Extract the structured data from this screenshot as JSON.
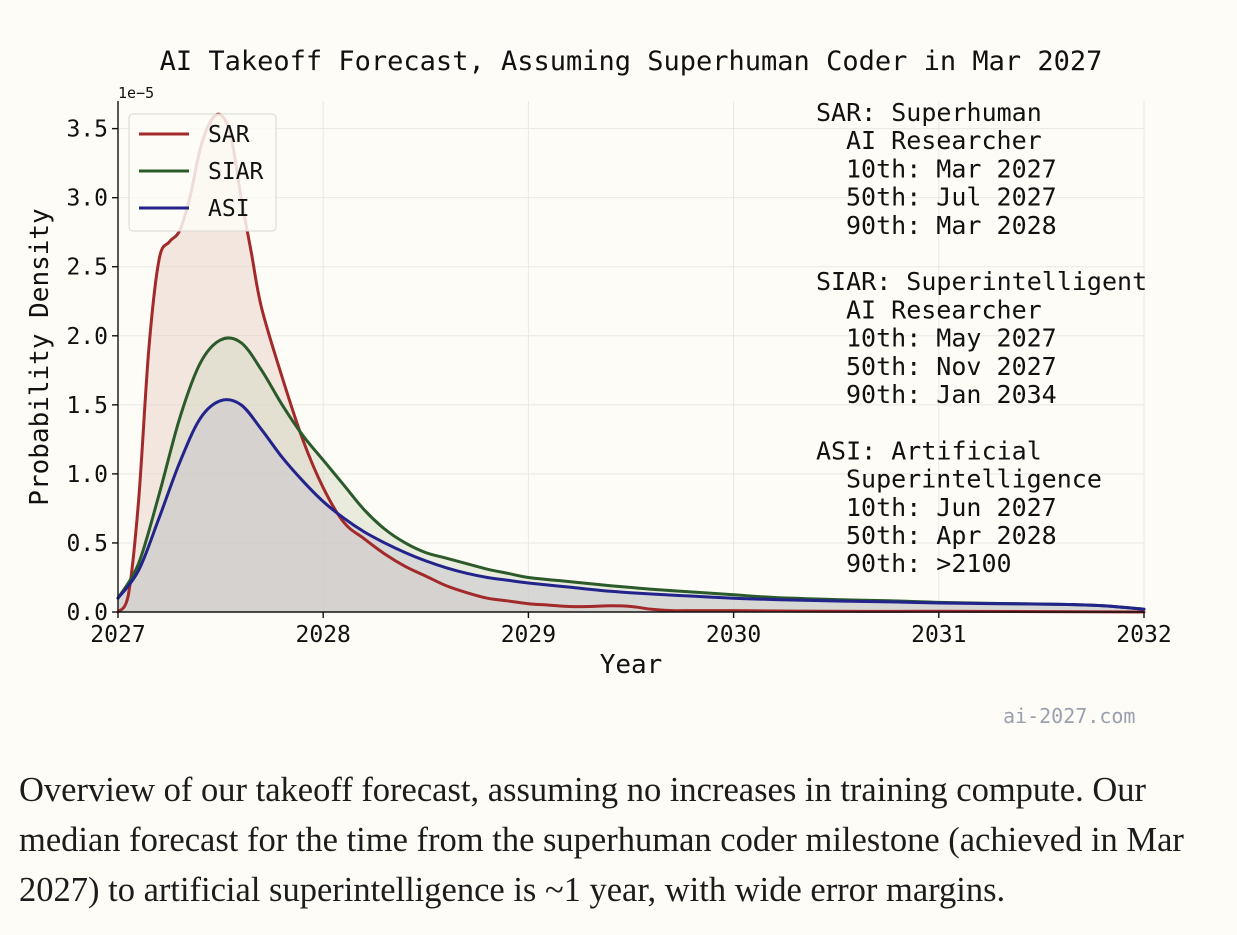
{
  "chart_data": {
    "type": "area",
    "title": "AI Takeoff Forecast, Assuming Superhuman Coder in Mar 2027",
    "xlabel": "Year",
    "ylabel": "Probability Density",
    "y_exponent_label": "1e−5",
    "xlim": [
      2027,
      2032
    ],
    "ylim": [
      0,
      3.7
    ],
    "y_scale_note": "values shown in units of 1e-5",
    "x_ticks": [
      "2027",
      "2028",
      "2029",
      "2030",
      "2031",
      "2032"
    ],
    "x_tick_values": [
      2027,
      2028,
      2029,
      2030,
      2031,
      2032
    ],
    "y_ticks": [
      "0.0",
      "0.5",
      "1.0",
      "1.5",
      "2.0",
      "2.5",
      "3.0",
      "3.5"
    ],
    "y_tick_values": [
      0,
      0.5,
      1.0,
      1.5,
      2.0,
      2.5,
      3.0,
      3.5
    ],
    "grid": true,
    "legend_position": "top-left",
    "series": [
      {
        "name": "SAR",
        "color": "#a32a2a",
        "fill": "#e9cfc6",
        "x": [
          2027.0,
          2027.05,
          2027.1,
          2027.15,
          2027.2,
          2027.25,
          2027.3,
          2027.35,
          2027.4,
          2027.45,
          2027.5,
          2027.55,
          2027.6,
          2027.65,
          2027.7,
          2027.8,
          2027.9,
          2028.0,
          2028.1,
          2028.2,
          2028.3,
          2028.4,
          2028.5,
          2028.6,
          2028.7,
          2028.8,
          2028.9,
          2029.0,
          2029.1,
          2029.2,
          2029.3,
          2029.4,
          2029.5,
          2029.6,
          2029.7,
          2029.8,
          2030.0,
          2030.5,
          2031.0,
          2031.5,
          2032.0
        ],
        "values": [
          0.0,
          0.12,
          0.8,
          1.9,
          2.55,
          2.68,
          2.76,
          3.0,
          3.35,
          3.55,
          3.6,
          3.45,
          3.0,
          2.6,
          2.2,
          1.7,
          1.25,
          0.9,
          0.65,
          0.53,
          0.42,
          0.33,
          0.26,
          0.19,
          0.14,
          0.1,
          0.08,
          0.06,
          0.05,
          0.04,
          0.04,
          0.045,
          0.04,
          0.02,
          0.01,
          0.01,
          0.01,
          0.005,
          0.005,
          0.003,
          0.0
        ]
      },
      {
        "name": "SIAR",
        "color": "#2b5a2b",
        "fill": "#d6d9c4",
        "x": [
          2027.0,
          2027.1,
          2027.2,
          2027.3,
          2027.4,
          2027.5,
          2027.6,
          2027.7,
          2027.8,
          2027.9,
          2028.0,
          2028.1,
          2028.2,
          2028.3,
          2028.4,
          2028.5,
          2028.6,
          2028.7,
          2028.8,
          2028.9,
          2029.0,
          2029.2,
          2029.4,
          2029.6,
          2029.8,
          2030.0,
          2030.2,
          2030.5,
          2030.8,
          2031.0,
          2031.3,
          2031.6,
          2031.8,
          2032.0
        ],
        "values": [
          0.1,
          0.35,
          0.85,
          1.4,
          1.8,
          1.97,
          1.95,
          1.75,
          1.5,
          1.28,
          1.1,
          0.92,
          0.74,
          0.6,
          0.5,
          0.43,
          0.39,
          0.35,
          0.31,
          0.28,
          0.25,
          0.22,
          0.19,
          0.165,
          0.145,
          0.125,
          0.105,
          0.09,
          0.08,
          0.07,
          0.062,
          0.055,
          0.045,
          0.02
        ]
      },
      {
        "name": "ASI",
        "color": "#23238c",
        "fill": "#c5c3ce",
        "x": [
          2027.0,
          2027.1,
          2027.2,
          2027.3,
          2027.4,
          2027.5,
          2027.6,
          2027.7,
          2027.8,
          2027.9,
          2028.0,
          2028.1,
          2028.2,
          2028.3,
          2028.4,
          2028.5,
          2028.6,
          2028.7,
          2028.8,
          2028.9,
          2029.0,
          2029.2,
          2029.4,
          2029.6,
          2029.8,
          2030.0,
          2030.2,
          2030.5,
          2030.8,
          2031.0,
          2031.3,
          2031.6,
          2031.8,
          2032.0
        ],
        "values": [
          0.1,
          0.3,
          0.68,
          1.08,
          1.4,
          1.53,
          1.5,
          1.32,
          1.12,
          0.95,
          0.8,
          0.68,
          0.58,
          0.5,
          0.43,
          0.37,
          0.32,
          0.28,
          0.25,
          0.23,
          0.21,
          0.18,
          0.15,
          0.13,
          0.115,
          0.1,
          0.09,
          0.08,
          0.072,
          0.065,
          0.06,
          0.055,
          0.045,
          0.02
        ]
      }
    ],
    "annotations": [
      {
        "line": "SAR: Superhuman",
        "indent": false
      },
      {
        "line": "AI Researcher",
        "indent": true
      },
      {
        "line": "10th: Mar 2027",
        "indent": true
      },
      {
        "line": "50th: Jul 2027",
        "indent": true
      },
      {
        "line": "90th: Mar 2028",
        "indent": true
      },
      {
        "line": "",
        "indent": false
      },
      {
        "line": "SIAR: Superintelligent",
        "indent": false
      },
      {
        "line": "AI Researcher",
        "indent": true
      },
      {
        "line": "10th: May 2027",
        "indent": true
      },
      {
        "line": "50th: Nov 2027",
        "indent": true
      },
      {
        "line": "90th: Jan 2034",
        "indent": true
      },
      {
        "line": "",
        "indent": false
      },
      {
        "line": "ASI: Artificial",
        "indent": false
      },
      {
        "line": "Superintelligence",
        "indent": true
      },
      {
        "line": "10th: Jun 2027",
        "indent": true
      },
      {
        "line": "50th: Apr 2028",
        "indent": true
      },
      {
        "line": "90th: >2100",
        "indent": true
      }
    ]
  },
  "watermark": "ai-2027.com",
  "caption": "Overview of our takeoff forecast, assuming no increases in training compute. Our median forecast for the time from the superhuman coder milestone (achieved in Mar 2027) to artificial superintelligence is ~1 year, with wide error margins."
}
